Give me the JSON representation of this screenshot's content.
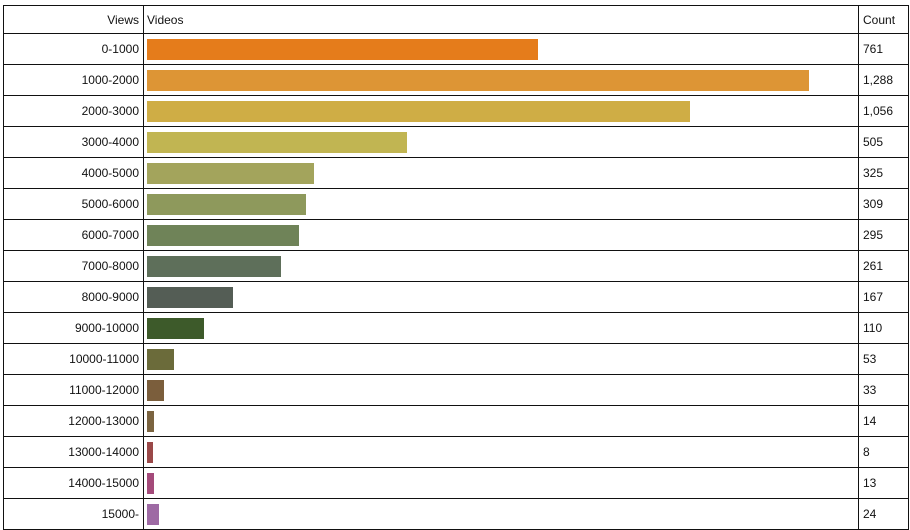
{
  "chart_data": {
    "type": "bar",
    "orientation": "horizontal",
    "headers": {
      "views": "Views",
      "videos": "Videos",
      "count": "Count"
    },
    "categories": [
      "0-1000",
      "1000-2000",
      "2000-3000",
      "3000-4000",
      "4000-5000",
      "5000-6000",
      "6000-7000",
      "7000-8000",
      "8000-9000",
      "9000-10000",
      "10000-11000",
      "11000-12000",
      "12000-13000",
      "13000-14000",
      "14000-15000",
      "15000-"
    ],
    "values": [
      761,
      1288,
      1056,
      505,
      325,
      309,
      295,
      261,
      167,
      110,
      53,
      33,
      14,
      8,
      13,
      24
    ],
    "labels": [
      "761",
      "1,288",
      "1,056",
      "505",
      "325",
      "309",
      "295",
      "261",
      "167",
      "110",
      "53",
      "33",
      "14",
      "8",
      "13",
      "24"
    ],
    "colors": [
      "#e57c1b",
      "#dd9535",
      "#cfad45",
      "#c1b552",
      "#a3a45c",
      "#8e995c",
      "#6f8358",
      "#5e6f5a",
      "#545d55",
      "#3d5a2a",
      "#6b6b3a",
      "#7b5e3c",
      "#7b6440",
      "#9a4848",
      "#a44a7a",
      "#9e6aa4"
    ]
  }
}
